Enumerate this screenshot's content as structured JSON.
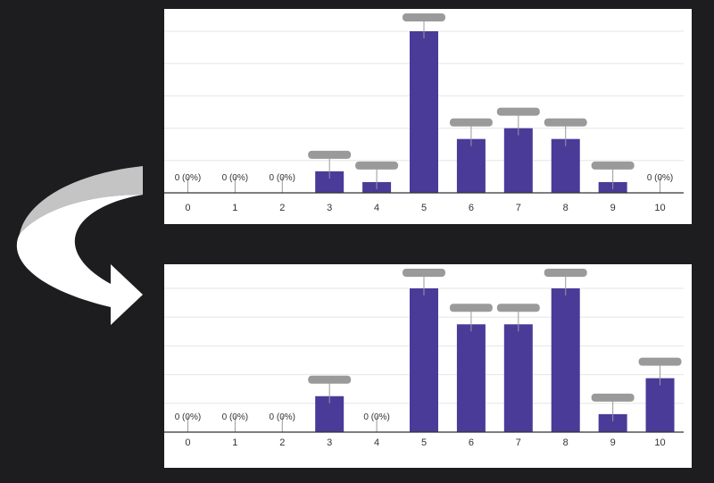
{
  "colors": {
    "bar": "#4a3b98",
    "grid": "#e6e6e6",
    "axis": "#333333",
    "redaction": "#9a9a9a",
    "background": "#1d1d1f",
    "arrow_light": "#c4c4c4",
    "arrow_dark": "#ffffff"
  },
  "icons": {
    "arrow": "curved-arrow-icon"
  },
  "chart_data": [
    {
      "type": "bar",
      "categories": [
        "0",
        "1",
        "2",
        "3",
        "4",
        "5",
        "6",
        "7",
        "8",
        "9",
        "10"
      ],
      "values": [
        0,
        0,
        0,
        4,
        2,
        30,
        10,
        12,
        10,
        2,
        0
      ],
      "data_labels": [
        "0 (0%)",
        "0 (0%)",
        "0 (0%)",
        "",
        "",
        "",
        "",
        "",
        "",
        "",
        "0 (0%)"
      ],
      "ylim": [
        0,
        30
      ],
      "grid": true,
      "xlabel": "",
      "ylabel": ""
    },
    {
      "type": "bar",
      "categories": [
        "0",
        "1",
        "2",
        "3",
        "4",
        "5",
        "6",
        "7",
        "8",
        "9",
        "10"
      ],
      "values": [
        0,
        0,
        0,
        2,
        0,
        8,
        6,
        6,
        8,
        1,
        3
      ],
      "data_labels": [
        "0 (0%)",
        "0 (0%)",
        "0 (0%)",
        "",
        "0 (0%)",
        "",
        "",
        "",
        "",
        "",
        ""
      ],
      "ylim": [
        0,
        8
      ],
      "grid": true,
      "xlabel": "",
      "ylabel": ""
    }
  ]
}
